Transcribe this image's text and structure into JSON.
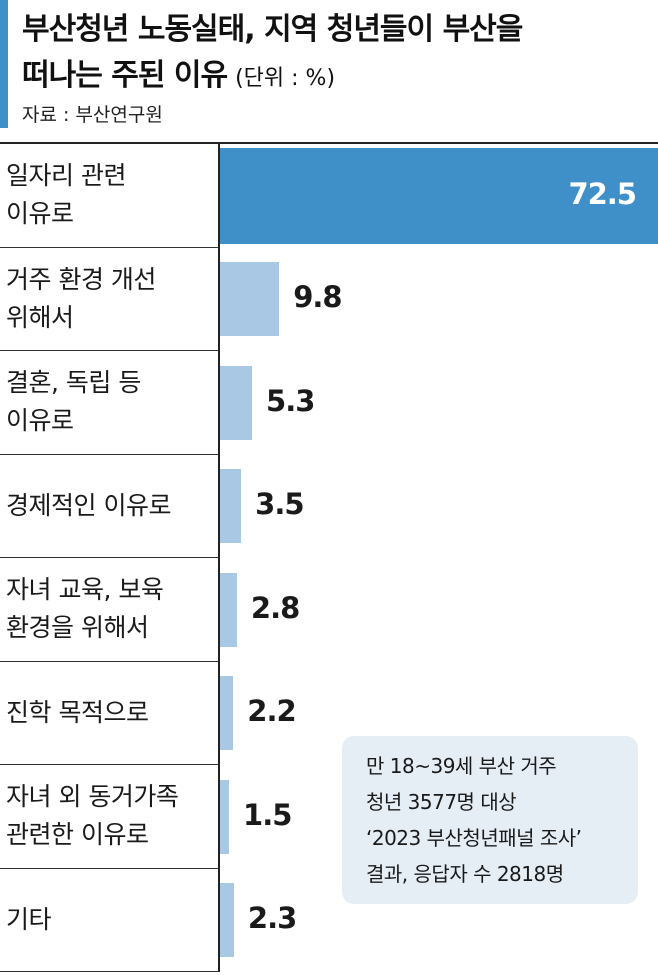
{
  "header": {
    "title_line1": "부산청년 노동실태, 지역 청년들이 부산을",
    "title_line2": "떠나는 주된 이유",
    "unit": "(단위 : %)",
    "source": "자료 : 부산연구원"
  },
  "note": {
    "lines": [
      "만 18~39세 부산 거주",
      "청년 3577명 대상",
      "‘2023 부산청년패널 조사’",
      "결과, 응답자 수 2818명"
    ]
  },
  "colors": {
    "accent": "#3f8fc8",
    "top_bar": "#3f8fc8",
    "bar": "#a8c8e4",
    "top_value_text": "#ffffff",
    "value_text": "#1a1a1a",
    "note_bg": "#e6eef5"
  },
  "chart_data": {
    "type": "bar",
    "orientation": "horizontal",
    "categories": [
      "일자리 관련\n이유로",
      "거주 환경 개선\n위해서",
      "결혼, 독립 등\n이유로",
      "경제적인 이유로",
      "자녀 교육, 보육\n환경을 위해서",
      "진학 목적으로",
      "자녀 외 동거가족\n관련한 이유로",
      "기타"
    ],
    "values": [
      72.5,
      9.8,
      5.3,
      3.5,
      2.8,
      2.2,
      1.5,
      2.3
    ],
    "value_labels": [
      "72.5",
      "9.8",
      "5.3",
      "3.5",
      "2.8",
      "2.2",
      "1.5",
      "2.3"
    ],
    "xlim": [
      0,
      72.5
    ],
    "grid": false,
    "legend": "none"
  }
}
